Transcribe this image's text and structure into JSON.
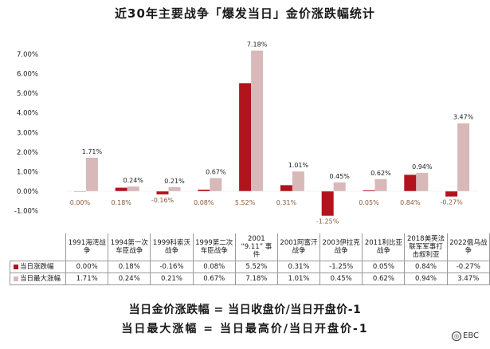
{
  "title": "近30年主要战争「爆发当日」金价涨跌幅统计",
  "chart_data": {
    "type": "bar",
    "categories": [
      "1991海湾战争",
      "1994第一次车臣战争",
      "1999科索沃战争",
      "1999第二次车臣战争",
      "2001“9.11”事件",
      "2001阿富汗战争",
      "2003伊拉克战争",
      "2011利比亚战争",
      "2018美英法联军军事打击叙利亚",
      "2022俄乌战争"
    ],
    "series": [
      {
        "name": "当日涨跌幅",
        "color": "#b2141d",
        "values": [
          0.0,
          0.18,
          -0.16,
          0.08,
          5.52,
          0.31,
          -1.25,
          0.05,
          0.84,
          -0.27
        ]
      },
      {
        "name": "当日最大涨幅",
        "color": "#d8b8b9",
        "values": [
          1.71,
          0.24,
          0.21,
          0.67,
          7.18,
          1.01,
          0.45,
          0.62,
          0.94,
          3.47
        ]
      }
    ],
    "data_labels": [
      [
        "0.00%",
        "0.18%",
        "-0.16%",
        "0.08%",
        "5.52%",
        "0.31%",
        "-1.25%",
        "0.05%",
        "0.84%",
        "-0.27%"
      ],
      [
        "1.71%",
        "0.24%",
        "0.21%",
        "0.67%",
        "7.18%",
        "1.01%",
        "0.45%",
        "0.62%",
        "0.94%",
        "3.47%"
      ]
    ],
    "ylim": [
      -1,
      7
    ],
    "yticks": [
      -1,
      0,
      1,
      2,
      3,
      4,
      5,
      6,
      7
    ],
    "ytick_labels": [
      "-1.00%",
      "0.00%",
      "1.00%",
      "2.00%",
      "3.00%",
      "4.00%",
      "5.00%",
      "6.00%",
      "7.00%"
    ],
    "grid": false,
    "legend": "table"
  },
  "table": {
    "headers": [
      [
        "1991海湾战",
        "争"
      ],
      [
        "1994第一次",
        "车臣战争"
      ],
      [
        "1999科索沃",
        "战争"
      ],
      [
        "1999第二次",
        "车臣战争"
      ],
      [
        "2001",
        "“9.11” 事",
        "件"
      ],
      [
        "2001阿富汗",
        "战争"
      ],
      [
        "2003伊拉克",
        "战争"
      ],
      [
        "2011利比亚",
        "战争"
      ],
      [
        "2018美英法",
        "联军军事打",
        "击叙利亚"
      ],
      [
        "2022俄乌战",
        "争"
      ]
    ],
    "rows": [
      {
        "label": "当日涨跌幅",
        "color": "#b2141d",
        "cells": [
          "0.00%",
          "0.18%",
          "-0.16%",
          "0.08%",
          "5.52%",
          "0.31%",
          "-1.25%",
          "0.05%",
          "0.84%",
          "-0.27%"
        ]
      },
      {
        "label": "当日最大涨幅",
        "color": "#d8b8b9",
        "cells": [
          "1.71%",
          "0.24%",
          "0.21%",
          "0.67%",
          "7.18%",
          "1.01%",
          "0.45%",
          "0.62%",
          "0.94%",
          "3.47%"
        ]
      }
    ]
  },
  "formulas": {
    "line1": "当日金价涨跌幅 = 当日收盘价/当日开盘价-1",
    "line2": "当日最大涨幅 = 当日最高价/当日开盘价-1"
  },
  "brand": {
    "text": "EBC",
    "icon": "circle-logo-icon"
  }
}
